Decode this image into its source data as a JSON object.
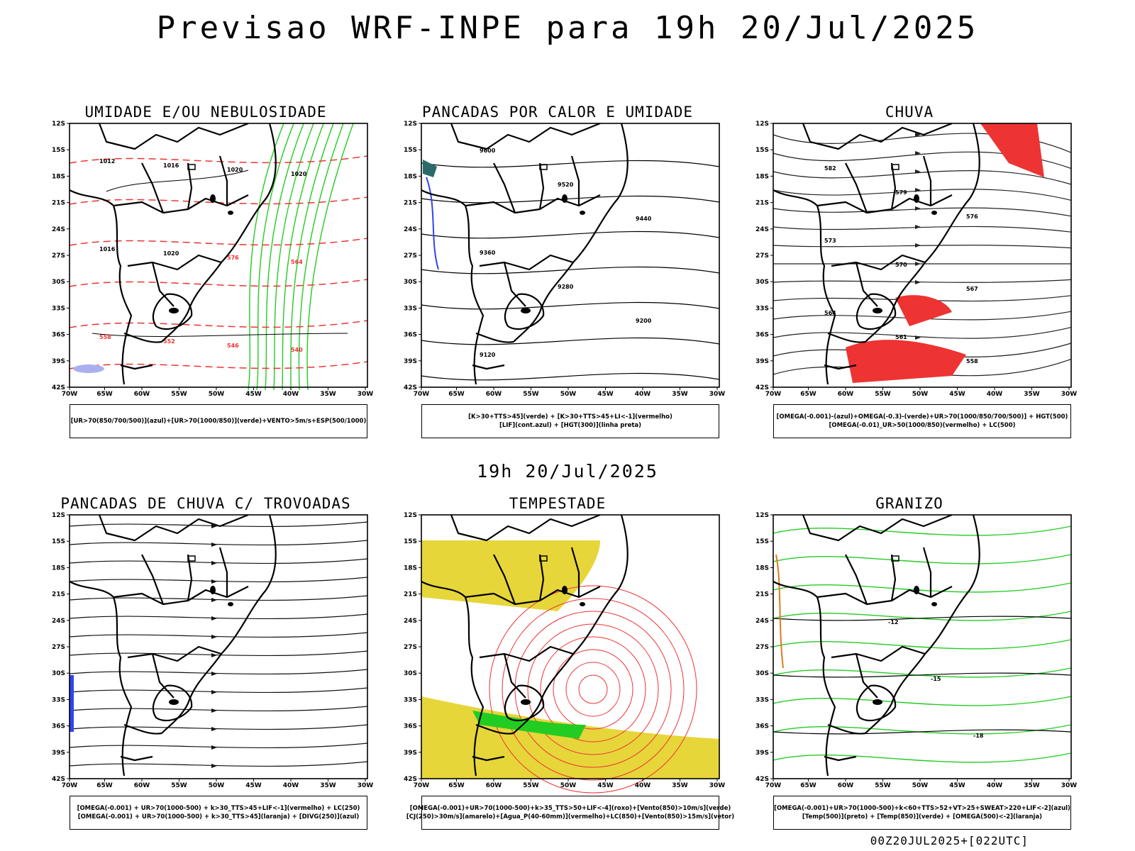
{
  "header": {
    "title": "Previsao WRF-INPE  para 19h 20/Jul/2025",
    "subtitle": "19h 20/Jul/2025"
  },
  "axes": {
    "lat_labels": [
      "12S",
      "15S",
      "18S",
      "21S",
      "24S",
      "27S",
      "30S",
      "33S",
      "36S",
      "39S",
      "42S"
    ],
    "lon_labels": [
      "70W",
      "65W",
      "60W",
      "55W",
      "50W",
      "45W",
      "40W",
      "35W",
      "30W"
    ]
  },
  "panels": [
    {
      "title": "UMIDADE E/OU NEBULOSIDADE",
      "legend": [
        "[UR>70(850/700/500)](azul)+[UR>70(1000/850)](verde)+VENTO>5m/s+ESP(500/1000)"
      ],
      "contour_labels": [
        "1012",
        "1016",
        "1020",
        "1020",
        "1016",
        "1020",
        "576",
        "564",
        "558",
        "552",
        "546",
        "540"
      ]
    },
    {
      "title": "PANCADAS POR CALOR E UMIDADE",
      "legend": [
        "[K>30+TTS>45](verde) + [K>30+TTS>45+LI<-1](vermelho)",
        "[LIF](cont.azul) + [HGT(300)](linha preta)"
      ],
      "contour_labels": [
        "9600",
        "9520",
        "9440",
        "9360",
        "9280",
        "9200",
        "9120"
      ]
    },
    {
      "title": "CHUVA",
      "legend": [
        "[OMEGA(-0.001)-(azul)+OMEGA(-0.3)-(verde)+UR>70(1000/850/700/500)] + HGT(500)",
        "[OMEGA(-0.01)_UR>50(1000/850)(vermelho) + LC(500)"
      ],
      "contour_labels": [
        "582",
        "579",
        "576",
        "573",
        "570",
        "567",
        "564",
        "561",
        "558"
      ]
    },
    {
      "title": "PANCADAS DE CHUVA C/ TROVOADAS",
      "legend": [
        "[OMEGA(-0.001) + UR>70(1000-500) + k>30_TTS>45+LIF<-1](vermelho) + LC(250)",
        "[OMEGA(-0.001) + UR>70(1000-500) + k>30_TTS>45](laranja) + [DIVG(250)](azul)"
      ],
      "contour_labels": []
    },
    {
      "title": "TEMPESTADE",
      "legend": [
        "[OMEGA(-0.001)+UR>70(1000-500)+k>35_TTS>50+LIF<-4](roxo)+[Vento(850)>10m/s](verde)",
        "[CJ(250)>30m/s](amarelo)+[Agua_P(40-60mm)](vermelho)+LC(850)+[Vento(850)>15m/s](vetor)"
      ],
      "contour_labels": []
    },
    {
      "title": "GRANIZO",
      "legend": [
        "[OMEGA(-0.001)+UR>70(1000-500)+k<60+TTS>52+VT>25+SWEAT>220+LIF<-2](azul)",
        "[Temp(500)](preto) + [Temp(850)](verde) + [OMEGA(500)<-2](laranja)"
      ],
      "contour_labels": [
        "-12",
        "-15",
        "-18"
      ]
    }
  ],
  "footer": {
    "run_label": "00Z20JUL2025+[022UTC]"
  },
  "colors": {
    "humidity_green": "#22cc22",
    "rain_red": "#ee3333",
    "jet_yellow": "#e6d63a",
    "lif_blue": "#3344ee"
  }
}
